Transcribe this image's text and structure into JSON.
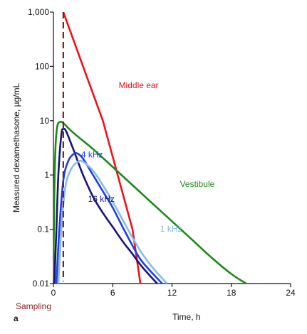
{
  "panel_letter": "a",
  "chart_data": {
    "type": "line",
    "xlabel": "Time, h",
    "ylabel": "Measured dexamethasone, µg/mL",
    "xlim": [
      0,
      24
    ],
    "ylim": [
      0.01,
      1000
    ],
    "yscale": "log",
    "x_ticks": [
      0,
      6,
      12,
      18,
      24
    ],
    "x_tick_labels": [
      "0",
      "6",
      "12",
      "18",
      "24"
    ],
    "y_ticks": [
      0.01,
      0.1,
      1,
      10,
      100,
      1000
    ],
    "y_tick_labels": [
      "0.01",
      "0.1",
      "1",
      "10",
      "100",
      "1,000"
    ],
    "grid": false,
    "legend": "none (series labeled inline)",
    "sampling": {
      "label": "Sampling",
      "x": 1,
      "color": "#8b1a1a"
    },
    "series": [
      {
        "name": "Middle ear",
        "color": "#e8141b",
        "points": [
          [
            1,
            1000
          ],
          [
            3,
            100
          ],
          [
            5,
            10
          ],
          [
            6.5,
            1
          ],
          [
            8,
            0.1
          ],
          [
            8.8,
            0.01
          ]
        ]
      },
      {
        "name": "Vestibule",
        "color": "#1a8a1a",
        "points": [
          [
            0,
            0.01
          ],
          [
            0.08,
            0.3
          ],
          [
            0.2,
            3
          ],
          [
            0.4,
            8
          ],
          [
            0.7,
            9.5
          ],
          [
            1,
            9
          ],
          [
            2,
            6
          ],
          [
            4,
            3
          ],
          [
            6,
            1.4
          ],
          [
            8,
            0.65
          ],
          [
            10,
            0.3
          ],
          [
            12,
            0.14
          ],
          [
            14,
            0.065
          ],
          [
            16,
            0.03
          ],
          [
            18,
            0.015
          ],
          [
            19.5,
            0.01
          ]
        ]
      },
      {
        "name": "16 kHz",
        "color": "#151577",
        "points": [
          [
            0.1,
            0.01
          ],
          [
            0.3,
            0.1
          ],
          [
            0.5,
            1
          ],
          [
            0.8,
            5.5
          ],
          [
            1,
            7
          ],
          [
            1.3,
            6.3
          ],
          [
            2,
            3
          ],
          [
            3,
            1
          ],
          [
            4,
            0.4
          ],
          [
            5,
            0.2
          ],
          [
            6,
            0.11
          ],
          [
            7,
            0.06
          ],
          [
            8,
            0.035
          ],
          [
            9,
            0.02
          ],
          [
            10.5,
            0.01
          ]
        ]
      },
      {
        "name": "4 kHz",
        "color": "#1f3fe6",
        "points": [
          [
            0.3,
            0.01
          ],
          [
            0.6,
            0.1
          ],
          [
            1,
            0.8
          ],
          [
            1.5,
            1.8
          ],
          [
            2,
            2.4
          ],
          [
            2.4,
            2.5
          ],
          [
            3,
            2
          ],
          [
            4,
            1
          ],
          [
            5,
            0.5
          ],
          [
            6,
            0.25
          ],
          [
            7,
            0.11
          ],
          [
            8,
            0.05
          ],
          [
            9,
            0.025
          ],
          [
            11,
            0.01
          ]
        ]
      },
      {
        "name": "1 kHz",
        "color": "#86bde6",
        "points": [
          [
            0.5,
            0.01
          ],
          [
            0.8,
            0.1
          ],
          [
            1.2,
            0.6
          ],
          [
            1.8,
            1.3
          ],
          [
            2.5,
            1.75
          ],
          [
            3,
            1.75
          ],
          [
            4,
            1.2
          ],
          [
            5,
            0.65
          ],
          [
            6,
            0.32
          ],
          [
            7,
            0.15
          ],
          [
            8,
            0.07
          ],
          [
            9,
            0.035
          ],
          [
            10,
            0.02
          ],
          [
            11.5,
            0.01
          ]
        ]
      }
    ],
    "annotations": [
      {
        "text": "Middle ear",
        "series": "Middle ear",
        "x": 6.6,
        "y": 40
      },
      {
        "text": "Vestibule",
        "series": "Vestibule",
        "x": 12.8,
        "y": 0.6
      },
      {
        "text": "4 kHz",
        "series": "4 kHz",
        "x": 2.8,
        "y": 2.1
      },
      {
        "text": "16 kHz",
        "series": "16 kHz",
        "x": 3.5,
        "y": 0.32
      },
      {
        "text": "1 kHz",
        "series": "1 kHz",
        "x": 10.8,
        "y": 0.09
      }
    ]
  }
}
